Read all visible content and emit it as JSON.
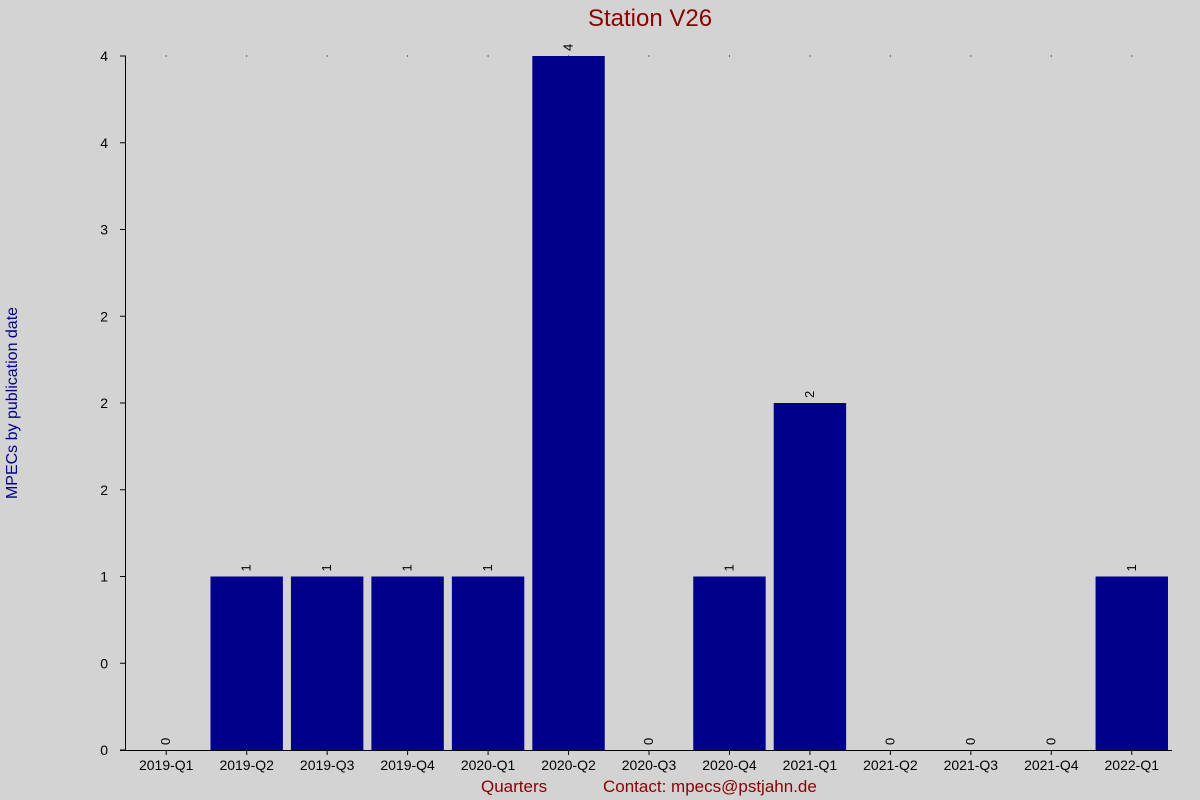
{
  "chart_data": {
    "type": "bar",
    "title": "Station V26",
    "xlabel": "Quarters",
    "ylabel": "MPECs by publication date",
    "contact": "Contact: mpecs",
    "contact_email": "pstjahn.de",
    "categories": [
      "2019-Q1",
      "2019-Q2",
      "2019-Q3",
      "2019-Q4",
      "2020-Q1",
      "2020-Q2",
      "2020-Q3",
      "2020-Q4",
      "2021-Q1",
      "2021-Q2",
      "2021-Q3",
      "2021-Q4",
      "2022-Q1"
    ],
    "values": [
      0,
      1,
      1,
      1,
      1,
      4,
      0,
      1,
      2,
      0,
      0,
      0,
      1
    ],
    "value_labels": [
      "0",
      "1",
      "1",
      "1",
      "1",
      "4",
      "0",
      "1",
      "2",
      "0",
      "0",
      "0",
      "1"
    ],
    "ylim": [
      0,
      4
    ],
    "y_ticks": [
      0,
      0.5,
      1,
      1.5,
      2,
      2.5,
      3,
      3.5,
      4
    ],
    "y_tick_labels": [
      "0",
      "0",
      "1",
      "2",
      "2",
      "2",
      "3",
      "4",
      "4"
    ],
    "bar_color": "#00008b",
    "background": "#d3d3d3"
  }
}
